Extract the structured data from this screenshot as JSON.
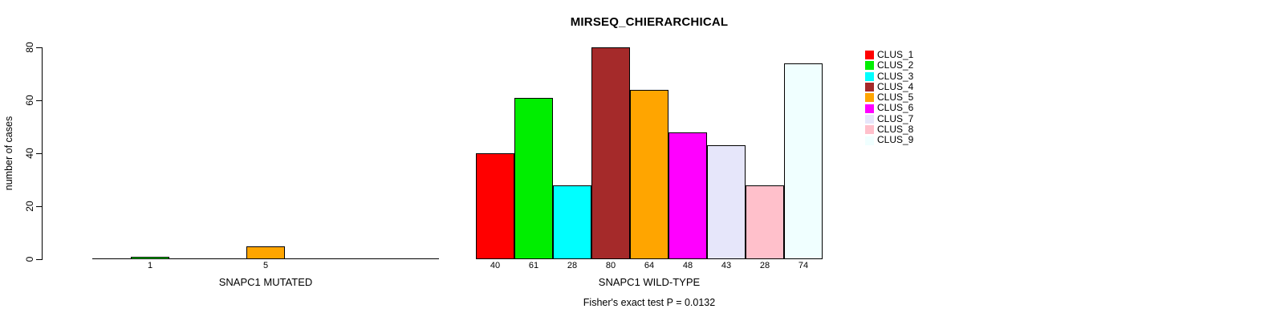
{
  "title": "MIRSEQ_CHIERARCHICAL",
  "footer": "Fisher's exact test P = 0.0132",
  "y_axis": {
    "label": "number of cases",
    "ticks": [
      0,
      20,
      40,
      60,
      80
    ],
    "max": 80
  },
  "legend": {
    "position": "right",
    "items": [
      {
        "label": "CLUS_1",
        "color": "#FF0000"
      },
      {
        "label": "CLUS_2",
        "color": "#00EE00"
      },
      {
        "label": "CLUS_3",
        "color": "#00FFFF"
      },
      {
        "label": "CLUS_4",
        "color": "#A52A2A"
      },
      {
        "label": "CLUS_5",
        "color": "#FFA500"
      },
      {
        "label": "CLUS_6",
        "color": "#FF00FF"
      },
      {
        "label": "CLUS_7",
        "color": "#E6E6FA"
      },
      {
        "label": "CLUS_8",
        "color": "#FFC0CB"
      },
      {
        "label": "CLUS_9",
        "color": "#F0FFFF"
      }
    ]
  },
  "chart_data": [
    {
      "type": "bar",
      "title": "MIRSEQ_CHIERARCHICAL",
      "xlabel": "SNAPC1 MUTATED",
      "ylabel": "number of cases",
      "categories": [
        "CLUS_1",
        "CLUS_2",
        "CLUS_3",
        "CLUS_4",
        "CLUS_5",
        "CLUS_6",
        "CLUS_7",
        "CLUS_8",
        "CLUS_9"
      ],
      "values": [
        0,
        1,
        0,
        0,
        5,
        0,
        0,
        0,
        0
      ],
      "bar_labels": [
        "",
        "1",
        "",
        "",
        "5",
        "",
        "",
        "",
        ""
      ],
      "colors": [
        "#FF0000",
        "#00EE00",
        "#00FFFF",
        "#A52A2A",
        "#FFA500",
        "#FF00FF",
        "#E6E6FA",
        "#FFC0CB",
        "#F0FFFF"
      ],
      "ylim": [
        0,
        80
      ],
      "yticks": [
        0,
        20,
        40,
        60,
        80
      ],
      "grid": false,
      "bar_gap": 0
    },
    {
      "type": "bar",
      "title": "MIRSEQ_CHIERARCHICAL",
      "xlabel": "SNAPC1 WILD-TYPE",
      "ylabel": "number of cases",
      "categories": [
        "CLUS_1",
        "CLUS_2",
        "CLUS_3",
        "CLUS_4",
        "CLUS_5",
        "CLUS_6",
        "CLUS_7",
        "CLUS_8",
        "CLUS_9"
      ],
      "values": [
        40,
        61,
        28,
        80,
        64,
        48,
        43,
        28,
        74
      ],
      "bar_labels": [
        "40",
        "61",
        "28",
        "80",
        "64",
        "48",
        "43",
        "28",
        "74"
      ],
      "colors": [
        "#FF0000",
        "#00EE00",
        "#00FFFF",
        "#A52A2A",
        "#FFA500",
        "#FF00FF",
        "#E6E6FA",
        "#FFC0CB",
        "#F0FFFF"
      ],
      "ylim": [
        0,
        80
      ],
      "yticks": [
        0,
        20,
        40,
        60,
        80
      ],
      "grid": false,
      "bar_gap": 0
    }
  ]
}
